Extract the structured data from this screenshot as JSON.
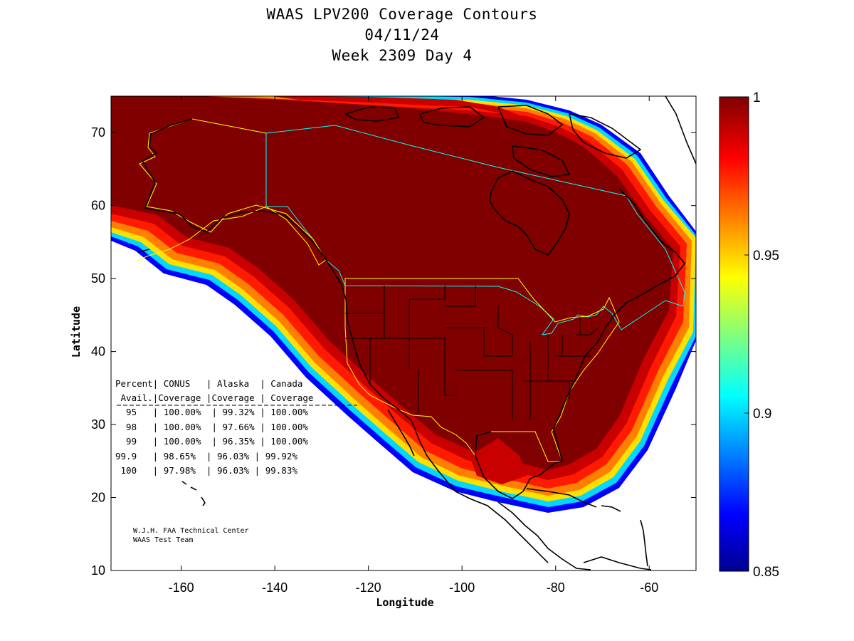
{
  "title": {
    "line1": "WAAS LPV200 Coverage Contours",
    "line2": "04/11/24",
    "line3": "Week 2309 Day 4"
  },
  "map": {
    "xlabel": "Longitude",
    "ylabel": "Latitude",
    "xlim": [
      -175,
      -50
    ],
    "ylim": [
      10,
      75
    ],
    "xticks": [
      "-160",
      "-140",
      "-120",
      "-100",
      "-80",
      "-60"
    ],
    "yticks": [
      "10",
      "20",
      "30",
      "40",
      "50",
      "60",
      "70"
    ],
    "colors": {
      "coverage_full": "#800000",
      "us_border": "#ffff00",
      "canada_border": "#00ffff",
      "coastline": "#000000"
    }
  },
  "colorbar": {
    "labels": [
      "1",
      "0.95",
      "0.9",
      "0.85"
    ],
    "range": [
      0.85,
      1
    ],
    "colormap": "jet"
  },
  "table": {
    "header1": "Percent| CONUS   | Alaska  | Canada",
    "header2": " Avail.|Coverage |Coverage | Coverage",
    "rows": [
      "  95   | 100.00%  | 99.32% | 100.00%",
      "  98   | 100.00%  | 97.66% | 100.00%",
      "  99   | 100.00%  | 96.35% | 100.00%",
      "99.9   | 98.65%  | 96.03% | 99.92%",
      " 100   | 97.98%  | 96.03% | 99.83%"
    ]
  },
  "credit": {
    "line1": "W.J.H. FAA Technical Center",
    "line2": "WAAS Test Team"
  }
}
